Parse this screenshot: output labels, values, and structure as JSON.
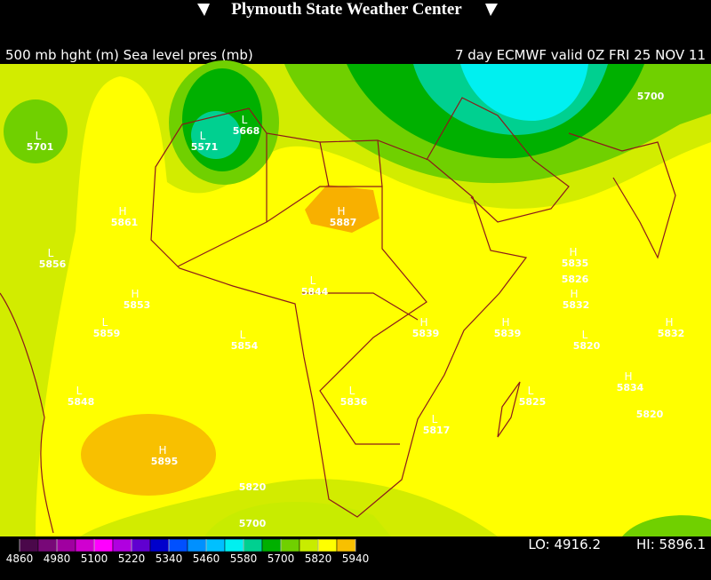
{
  "header": {
    "title": "Plymouth State Weather Center",
    "left": "500 mb hght (m) Sea level pres (mb)",
    "right": "7 day ECMWF valid 0Z FRI 25 NOV 11"
  },
  "markers": [
    {
      "symbol": "L",
      "value": 5701
    },
    {
      "symbol": "L",
      "value": 5668
    },
    {
      "symbol": "L",
      "value": 5571
    },
    {
      "symbol": "H",
      "value": 5861
    },
    {
      "symbol": "H",
      "value": 5887
    },
    {
      "symbol": "L",
      "value": 5856
    },
    {
      "symbol": "L",
      "value": 5844
    },
    {
      "symbol": "H",
      "value": 5835
    },
    {
      "symbol": "H",
      "value": 5832
    },
    {
      "symbol": "H",
      "value": 5853
    },
    {
      "symbol": "L",
      "value": 5859
    },
    {
      "symbol": "H",
      "value": 5839
    },
    {
      "symbol": "H",
      "value": 5839
    },
    {
      "symbol": "L",
      "value": 5820
    },
    {
      "symbol": "H",
      "value": 5832
    },
    {
      "symbol": "L",
      "value": 5854
    },
    {
      "symbol": "L",
      "value": 5848
    },
    {
      "symbol": "L",
      "value": 5836
    },
    {
      "symbol": "L",
      "value": 5825
    },
    {
      "symbol": "H",
      "value": 5834
    },
    {
      "symbol": "L",
      "value": 5817
    },
    {
      "symbol": "H",
      "value": 5895
    }
  ],
  "contour_labels": [
    5700,
    5826,
    5820,
    5820,
    5700
  ],
  "colorbar": {
    "ticks": [
      4860,
      4980,
      5100,
      5220,
      5340,
      5460,
      5580,
      5700,
      5820,
      5940
    ],
    "colors": [
      "#4a084a",
      "#780878",
      "#a000a0",
      "#d000d0",
      "#ff00ff",
      "#b000e0",
      "#6000d0",
      "#0000cc",
      "#0050ff",
      "#0090ff",
      "#00c0ff",
      "#00f0f0",
      "#00d090",
      "#00b000",
      "#70d000",
      "#c8ec00",
      "#ffff00",
      "#f8c000"
    ]
  },
  "footer": {
    "lo": "LO: 4916.2",
    "hi": "HI: 5896.1"
  }
}
